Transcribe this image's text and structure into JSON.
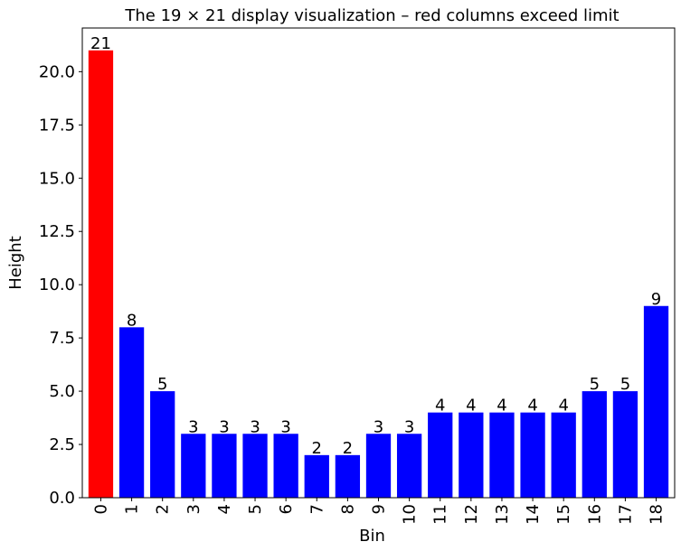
{
  "chart_data": {
    "type": "bar",
    "title": "The 19 × 21 display visualization – red columns exceed limit",
    "xlabel": "Bin",
    "ylabel": "Height",
    "categories": [
      "0",
      "1",
      "2",
      "3",
      "4",
      "5",
      "6",
      "7",
      "8",
      "9",
      "10",
      "11",
      "12",
      "13",
      "14",
      "15",
      "16",
      "17",
      "18"
    ],
    "values": [
      21,
      8,
      5,
      3,
      3,
      3,
      3,
      2,
      2,
      3,
      3,
      4,
      4,
      4,
      4,
      4,
      5,
      5,
      9
    ],
    "bar_colors": [
      "#ff0000",
      "#0000ff",
      "#0000ff",
      "#0000ff",
      "#0000ff",
      "#0000ff",
      "#0000ff",
      "#0000ff",
      "#0000ff",
      "#0000ff",
      "#0000ff",
      "#0000ff",
      "#0000ff",
      "#0000ff",
      "#0000ff",
      "#0000ff",
      "#0000ff",
      "#0000ff",
      "#0000ff"
    ],
    "ylim": [
      0,
      22.05
    ],
    "yticks": [
      "0.0",
      "2.5",
      "5.0",
      "7.5",
      "10.0",
      "12.5",
      "15.0",
      "17.5",
      "20.0"
    ],
    "grid": false,
    "colors": {
      "exceed": "#ff0000",
      "normal": "#0000ff"
    }
  }
}
